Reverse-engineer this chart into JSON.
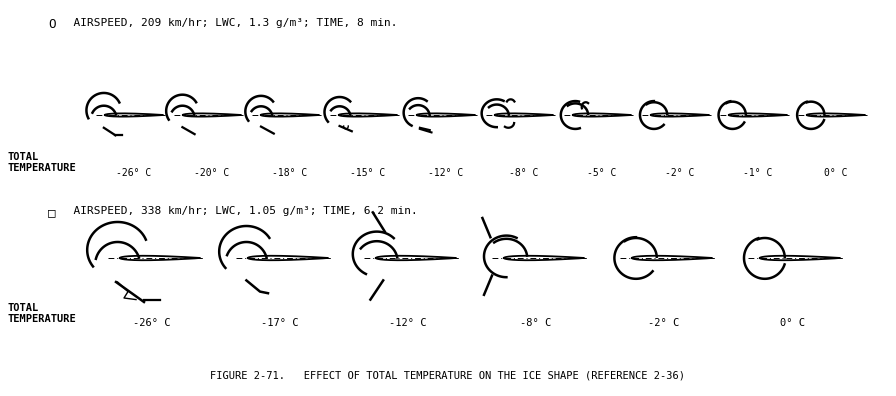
{
  "title": "FIGURE 2-71.   EFFECT OF TOTAL TEMPERATURE ON THE ICE SHAPE (REFERENCE 2-36)",
  "row1_label1": "TOTAL",
  "row1_label2": "TEMPERATURE",
  "row2_label1": "TOTAL",
  "row2_label2": "TEMPERATURE",
  "legend1_symbol": "O",
  "legend1_text": "  AIRSPEED, 209 km/hr; LWC, 1.3 g/m³; TIME, 8 min.",
  "legend2_symbol": "□",
  "legend2_text": "  AIRSPEED, 338 km/hr; LWC, 1.05 g/m³; TIME, 6.2 min.",
  "row1_temps": [
    "-26° C",
    "-20° C",
    "-18° C",
    "-15° C",
    "-12° C",
    "-8° C",
    "-5° C",
    "-2° C",
    "-1° C",
    "0° C"
  ],
  "row2_temps": [
    "-26° C",
    "-17° C",
    "-12° C",
    "-8° C",
    "-2° C",
    "0° C"
  ],
  "background_color": "#ffffff",
  "figure_width": 8.96,
  "figure_height": 3.96,
  "dpi": 100
}
